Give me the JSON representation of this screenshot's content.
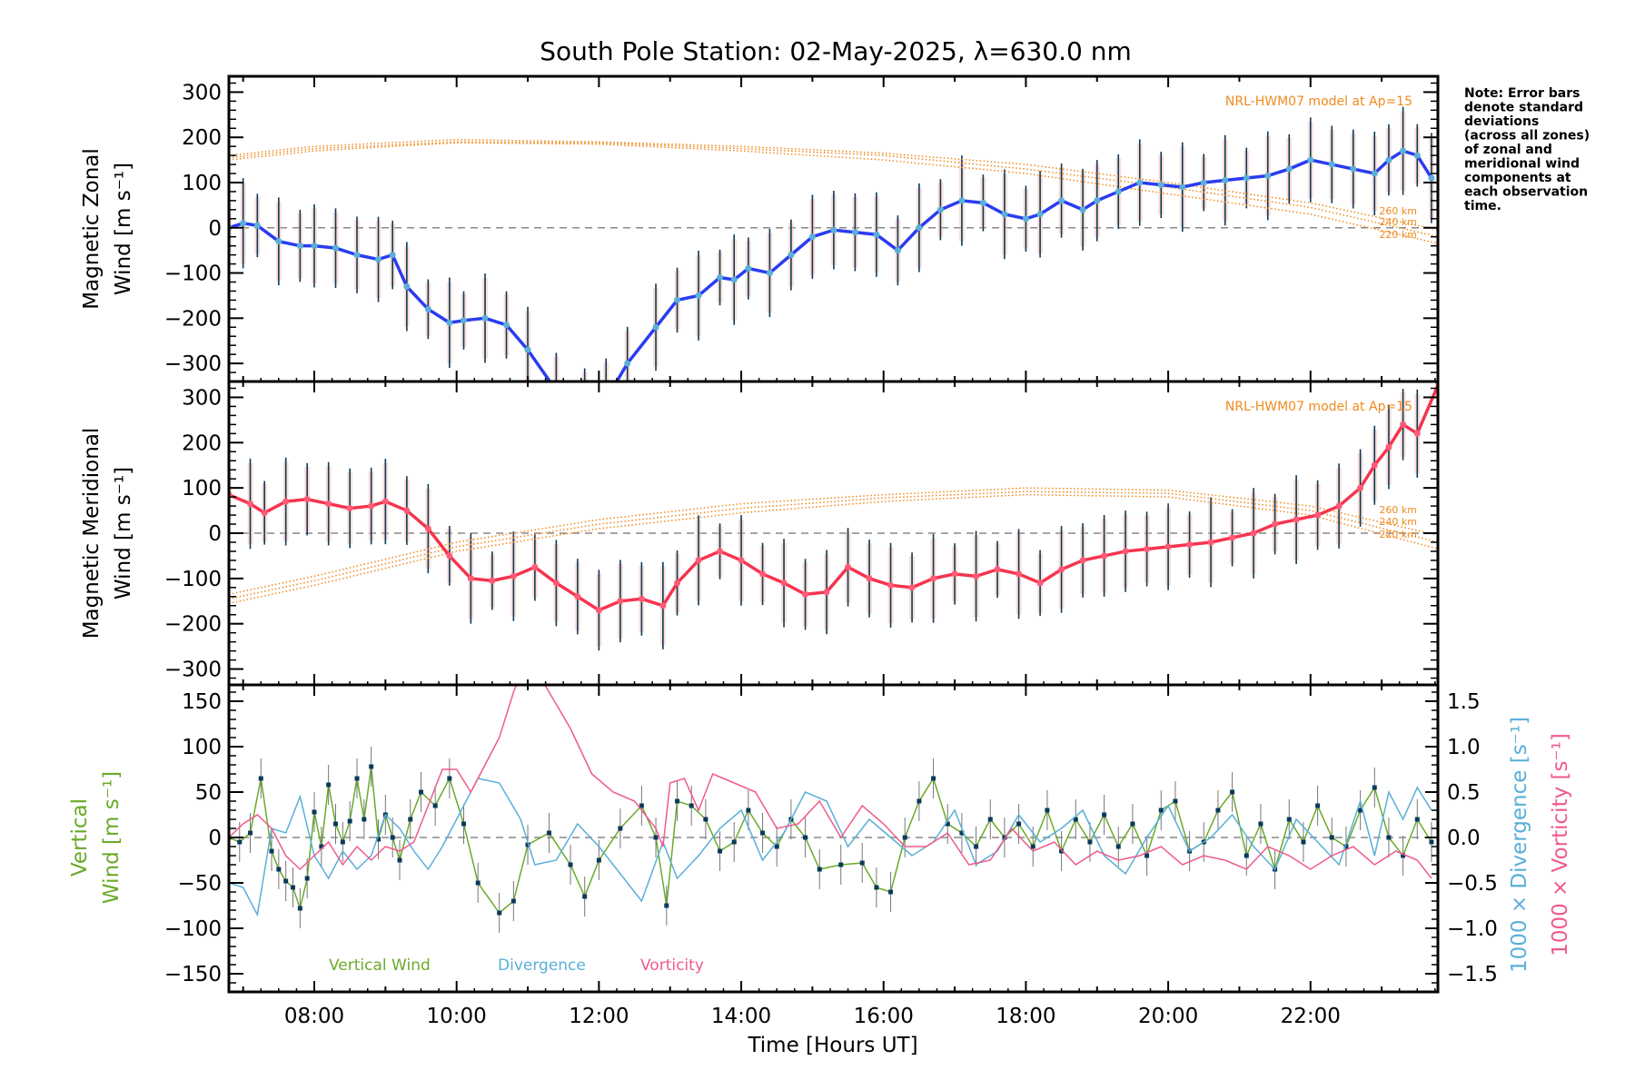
{
  "chart_data": [
    {
      "panel": "zonal",
      "type": "line",
      "title": "South Pole Station: 02-May-2025, λ=630.0 nm",
      "ylabel_line1": "Magnetic Zonal",
      "ylabel_line2": "Wind [m s⁻¹]",
      "ylim": [
        -340,
        335
      ],
      "yticks": [
        -300,
        -200,
        -100,
        0,
        100,
        200,
        300
      ],
      "grid": false,
      "model_label": "NRL-HWM07 model at Ap=15",
      "altitude_labels": [
        "260 km",
        "240 km",
        "220 km"
      ],
      "series": [
        {
          "name": "Zonal wind (mean)",
          "color": "#2a3cf0",
          "x": [
            6.8,
            7.0,
            7.2,
            7.5,
            7.8,
            8.0,
            8.3,
            8.6,
            8.9,
            9.1,
            9.3,
            9.6,
            9.9,
            10.1,
            10.4,
            10.7,
            11.0,
            11.4,
            11.8,
            12.1,
            12.4,
            12.8,
            13.1,
            13.4,
            13.7,
            13.9,
            14.1,
            14.4,
            14.7,
            15.0,
            15.3,
            15.6,
            15.9,
            16.2,
            16.5,
            16.8,
            17.1,
            17.4,
            17.7,
            18.0,
            18.2,
            18.5,
            18.8,
            19.0,
            19.3,
            19.6,
            19.9,
            20.2,
            20.5,
            20.8,
            21.1,
            21.4,
            21.7,
            22.0,
            22.3,
            22.6,
            22.9,
            23.1,
            23.3,
            23.5,
            23.7
          ],
          "values": [
            0,
            10,
            5,
            -30,
            -40,
            -40,
            -45,
            -60,
            -70,
            -60,
            -130,
            -180,
            -210,
            -205,
            -200,
            -215,
            -270,
            -360,
            -400,
            -380,
            -300,
            -220,
            -160,
            -150,
            -110,
            -115,
            -90,
            -100,
            -60,
            -20,
            -5,
            -10,
            -15,
            -50,
            0,
            40,
            60,
            55,
            30,
            20,
            30,
            60,
            40,
            60,
            80,
            100,
            95,
            90,
            100,
            105,
            110,
            115,
            130,
            150,
            140,
            130,
            120,
            150,
            170,
            160,
            110
          ]
        },
        {
          "name": "NRL-HWM07 260 km",
          "color": "#f08a1e",
          "x": [
            6.8,
            8.0,
            10.0,
            12.0,
            14.0,
            16.0,
            18.0,
            20.0,
            22.0,
            23.8
          ],
          "values": [
            160,
            180,
            195,
            190,
            180,
            165,
            140,
            100,
            55,
            -5
          ]
        },
        {
          "name": "NRL-HWM07 240 km",
          "color": "#f08a1e",
          "x": [
            6.8,
            8.0,
            10.0,
            12.0,
            14.0,
            16.0,
            18.0,
            20.0,
            22.0,
            23.8
          ],
          "values": [
            155,
            175,
            190,
            188,
            175,
            160,
            130,
            90,
            45,
            -20
          ]
        },
        {
          "name": "NRL-HWM07 220 km",
          "color": "#f08a1e",
          "x": [
            6.8,
            8.0,
            10.0,
            12.0,
            14.0,
            16.0,
            18.0,
            20.0,
            22.0,
            23.8
          ],
          "values": [
            150,
            170,
            188,
            185,
            170,
            150,
            120,
            75,
            30,
            -35
          ]
        }
      ]
    },
    {
      "panel": "meridional",
      "type": "line",
      "ylabel_line1": "Magnetic Meridional",
      "ylabel_line2": "Wind [m s⁻¹]",
      "ylim": [
        -335,
        335
      ],
      "yticks": [
        -300,
        -200,
        -100,
        0,
        100,
        200,
        300
      ],
      "grid": false,
      "model_label": "NRL-HWM07 model at Ap=15",
      "altitude_labels": [
        "260 km",
        "240 km",
        "220 km"
      ],
      "series": [
        {
          "name": "Meridional wind (mean)",
          "color": "#f5344f",
          "x": [
            6.8,
            7.1,
            7.3,
            7.6,
            7.9,
            8.2,
            8.5,
            8.8,
            9.0,
            9.3,
            9.6,
            9.9,
            10.2,
            10.5,
            10.8,
            11.1,
            11.4,
            11.7,
            12.0,
            12.3,
            12.6,
            12.9,
            13.1,
            13.4,
            13.7,
            14.0,
            14.3,
            14.6,
            14.9,
            15.2,
            15.5,
            15.8,
            16.1,
            16.4,
            16.7,
            17.0,
            17.3,
            17.6,
            17.9,
            18.2,
            18.5,
            18.8,
            19.1,
            19.4,
            19.7,
            20.0,
            20.3,
            20.6,
            20.9,
            21.2,
            21.5,
            21.8,
            22.1,
            22.4,
            22.7,
            22.9,
            23.1,
            23.3,
            23.5,
            23.8
          ],
          "values": [
            85,
            65,
            45,
            70,
            75,
            65,
            55,
            60,
            70,
            50,
            10,
            -50,
            -100,
            -105,
            -95,
            -75,
            -110,
            -140,
            -170,
            -150,
            -145,
            -160,
            -110,
            -60,
            -40,
            -60,
            -90,
            -110,
            -135,
            -130,
            -75,
            -100,
            -115,
            -120,
            -100,
            -90,
            -95,
            -80,
            -90,
            -110,
            -80,
            -60,
            -50,
            -40,
            -35,
            -30,
            -25,
            -20,
            -10,
            0,
            20,
            30,
            40,
            60,
            100,
            150,
            190,
            240,
            220,
            330
          ]
        },
        {
          "name": "NRL-HWM07 260 km",
          "color": "#f08a1e",
          "x": [
            6.8,
            8.0,
            10.0,
            12.0,
            14.0,
            16.0,
            18.0,
            20.0,
            22.0,
            23.8
          ],
          "values": [
            -135,
            -95,
            -20,
            30,
            65,
            85,
            100,
            95,
            60,
            -5
          ]
        },
        {
          "name": "NRL-HWM07 240 km",
          "color": "#f08a1e",
          "x": [
            6.8,
            8.0,
            10.0,
            12.0,
            14.0,
            16.0,
            18.0,
            20.0,
            22.0,
            23.8
          ],
          "values": [
            -145,
            -105,
            -30,
            20,
            55,
            78,
            92,
            88,
            50,
            -20
          ]
        },
        {
          "name": "NRL-HWM07 220 km",
          "color": "#f08a1e",
          "x": [
            6.8,
            8.0,
            10.0,
            12.0,
            14.0,
            16.0,
            18.0,
            20.0,
            22.0,
            23.8
          ],
          "values": [
            -155,
            -115,
            -40,
            10,
            45,
            70,
            85,
            80,
            40,
            -35
          ]
        }
      ]
    },
    {
      "panel": "vertical",
      "type": "line",
      "ylabel_line1": "Vertical",
      "ylabel_line2": "Wind [m s⁻¹]",
      "ylim": [
        -170,
        168
      ],
      "yticks": [
        -150,
        -100,
        -50,
        0,
        50,
        100,
        150
      ],
      "y2label_divergence": "1000 × Divergence [s⁻¹]",
      "y2label_vorticity": "1000 × Vorticity [s⁻¹]",
      "y2lim": [
        -1.7,
        1.68
      ],
      "y2ticks": [
        "-1.5",
        "-1.0",
        "-0.5",
        "0.0",
        "0.5",
        "1.0",
        "1.5"
      ],
      "xlabel": "Time [Hours UT]",
      "xlim": [
        6.8,
        23.79
      ],
      "xticks": [
        "08:00",
        "10:00",
        "12:00",
        "14:00",
        "16:00",
        "18:00",
        "20:00",
        "22:00"
      ],
      "legend": [
        "Vertical Wind",
        "Divergence",
        "Vorticity"
      ],
      "series": [
        {
          "name": "Vertical Wind",
          "color": "#6aaa2a",
          "x": [
            6.8,
            6.95,
            7.1,
            7.25,
            7.4,
            7.5,
            7.6,
            7.7,
            7.8,
            7.9,
            8.0,
            8.1,
            8.2,
            8.3,
            8.4,
            8.5,
            8.6,
            8.7,
            8.8,
            8.9,
            9.0,
            9.1,
            9.2,
            9.35,
            9.5,
            9.7,
            9.9,
            10.1,
            10.3,
            10.6,
            10.8,
            11.0,
            11.3,
            11.6,
            11.8,
            12.0,
            12.3,
            12.6,
            12.8,
            12.95,
            13.1,
            13.3,
            13.5,
            13.7,
            13.9,
            14.1,
            14.3,
            14.5,
            14.7,
            14.9,
            15.1,
            15.4,
            15.7,
            15.9,
            16.1,
            16.3,
            16.5,
            16.7,
            16.9,
            17.1,
            17.3,
            17.5,
            17.7,
            17.9,
            18.1,
            18.3,
            18.5,
            18.7,
            18.9,
            19.1,
            19.3,
            19.5,
            19.7,
            19.9,
            20.1,
            20.3,
            20.5,
            20.7,
            20.9,
            21.1,
            21.3,
            21.5,
            21.7,
            21.9,
            22.1,
            22.3,
            22.5,
            22.7,
            22.9,
            23.1,
            23.3,
            23.5,
            23.7
          ],
          "values": [
            0,
            -5,
            5,
            65,
            -15,
            -35,
            -48,
            -55,
            -78,
            -45,
            28,
            -10,
            58,
            15,
            -5,
            18,
            65,
            20,
            78,
            -2,
            25,
            0,
            -25,
            20,
            50,
            35,
            65,
            15,
            -50,
            -83,
            -70,
            -8,
            5,
            -30,
            -65,
            -25,
            10,
            35,
            0,
            -75,
            40,
            35,
            20,
            -15,
            -5,
            30,
            5,
            -10,
            20,
            0,
            -35,
            -30,
            -28,
            -55,
            -60,
            0,
            40,
            65,
            15,
            5,
            -10,
            20,
            0,
            15,
            -10,
            30,
            -15,
            20,
            -5,
            25,
            -10,
            15,
            -20,
            30,
            40,
            -15,
            -5,
            30,
            50,
            -20,
            15,
            -35,
            20,
            -5,
            35,
            0,
            -10,
            30,
            55,
            0,
            -20,
            20,
            -5
          ]
        },
        {
          "name": "Divergence",
          "color": "#5aafd8",
          "x": [
            6.8,
            7.0,
            7.2,
            7.4,
            7.6,
            7.8,
            8.0,
            8.2,
            8.4,
            8.6,
            8.8,
            9.0,
            9.2,
            9.4,
            9.6,
            9.8,
            10.0,
            10.3,
            10.6,
            10.9,
            11.1,
            11.4,
            11.7,
            12.0,
            12.3,
            12.6,
            12.9,
            13.1,
            13.4,
            13.7,
            14.0,
            14.3,
            14.6,
            14.9,
            15.2,
            15.5,
            15.8,
            16.1,
            16.4,
            16.7,
            17.0,
            17.3,
            17.6,
            17.9,
            18.2,
            18.5,
            18.8,
            19.1,
            19.4,
            19.7,
            20.0,
            20.3,
            20.6,
            20.9,
            21.2,
            21.5,
            21.8,
            22.1,
            22.4,
            22.7,
            22.9,
            23.1,
            23.3,
            23.5,
            23.7
          ],
          "values": [
            -0.5,
            -0.55,
            -0.85,
            0.1,
            0.05,
            0.45,
            -0.2,
            -0.45,
            -0.15,
            -0.35,
            -0.2,
            0.25,
            0.1,
            -0.15,
            -0.35,
            -0.1,
            0.2,
            0.65,
            0.6,
            0.2,
            -0.3,
            -0.25,
            0.15,
            -0.1,
            -0.4,
            -0.7,
            -0.05,
            -0.45,
            -0.2,
            0.1,
            0.3,
            -0.25,
            0.05,
            0.5,
            0.4,
            -0.1,
            0.2,
            0.0,
            -0.2,
            -0.05,
            0.3,
            -0.3,
            -0.15,
            0.25,
            -0.05,
            0.1,
            0.3,
            -0.2,
            -0.4,
            0.0,
            0.35,
            -0.15,
            0.0,
            0.25,
            -0.1,
            -0.35,
            0.2,
            -0.05,
            -0.3,
            0.4,
            -0.2,
            0.5,
            0.2,
            0.55,
            0.3
          ]
        },
        {
          "name": "Vorticity",
          "color": "#f05a8c",
          "x": [
            6.8,
            7.0,
            7.2,
            7.4,
            7.6,
            7.8,
            8.0,
            8.2,
            8.4,
            8.6,
            8.8,
            9.0,
            9.2,
            9.4,
            9.6,
            9.8,
            10.0,
            10.2,
            10.4,
            10.6,
            10.8,
            11.0,
            11.3,
            11.6,
            11.9,
            12.2,
            12.5,
            12.8,
            12.9,
            13.0,
            13.2,
            13.4,
            13.6,
            13.9,
            14.2,
            14.5,
            14.8,
            15.1,
            15.4,
            15.7,
            16.0,
            16.3,
            16.6,
            16.9,
            17.2,
            17.5,
            17.8,
            18.1,
            18.4,
            18.7,
            19.0,
            19.3,
            19.6,
            19.9,
            20.2,
            20.5,
            20.8,
            21.1,
            21.4,
            21.7,
            22.0,
            22.3,
            22.6,
            22.9,
            23.2,
            23.5,
            23.7
          ],
          "values": [
            0.0,
            0.15,
            0.25,
            0.1,
            -0.2,
            -0.35,
            -0.2,
            -0.05,
            -0.3,
            -0.1,
            -0.25,
            -0.1,
            -0.15,
            -0.05,
            0.35,
            0.75,
            0.75,
            0.5,
            0.8,
            1.1,
            1.6,
            2.0,
            1.6,
            1.2,
            0.7,
            0.5,
            0.4,
            0.1,
            -0.1,
            0.6,
            0.65,
            0.3,
            0.7,
            0.6,
            0.5,
            0.1,
            0.15,
            0.4,
            0.0,
            0.35,
            0.15,
            -0.1,
            -0.1,
            0.05,
            -0.3,
            -0.25,
            0.1,
            -0.15,
            -0.05,
            -0.3,
            -0.15,
            -0.25,
            -0.2,
            -0.1,
            -0.3,
            -0.2,
            -0.25,
            -0.35,
            -0.1,
            -0.2,
            -0.35,
            -0.2,
            -0.1,
            -0.3,
            -0.15,
            -0.25,
            -0.45
          ]
        }
      ]
    }
  ],
  "note": {
    "lines": [
      "Note: Error bars",
      "denote standard",
      "deviations",
      "(across all zones)",
      "of zonal and",
      "meridional wind",
      "components at",
      "each observation",
      "time."
    ]
  }
}
